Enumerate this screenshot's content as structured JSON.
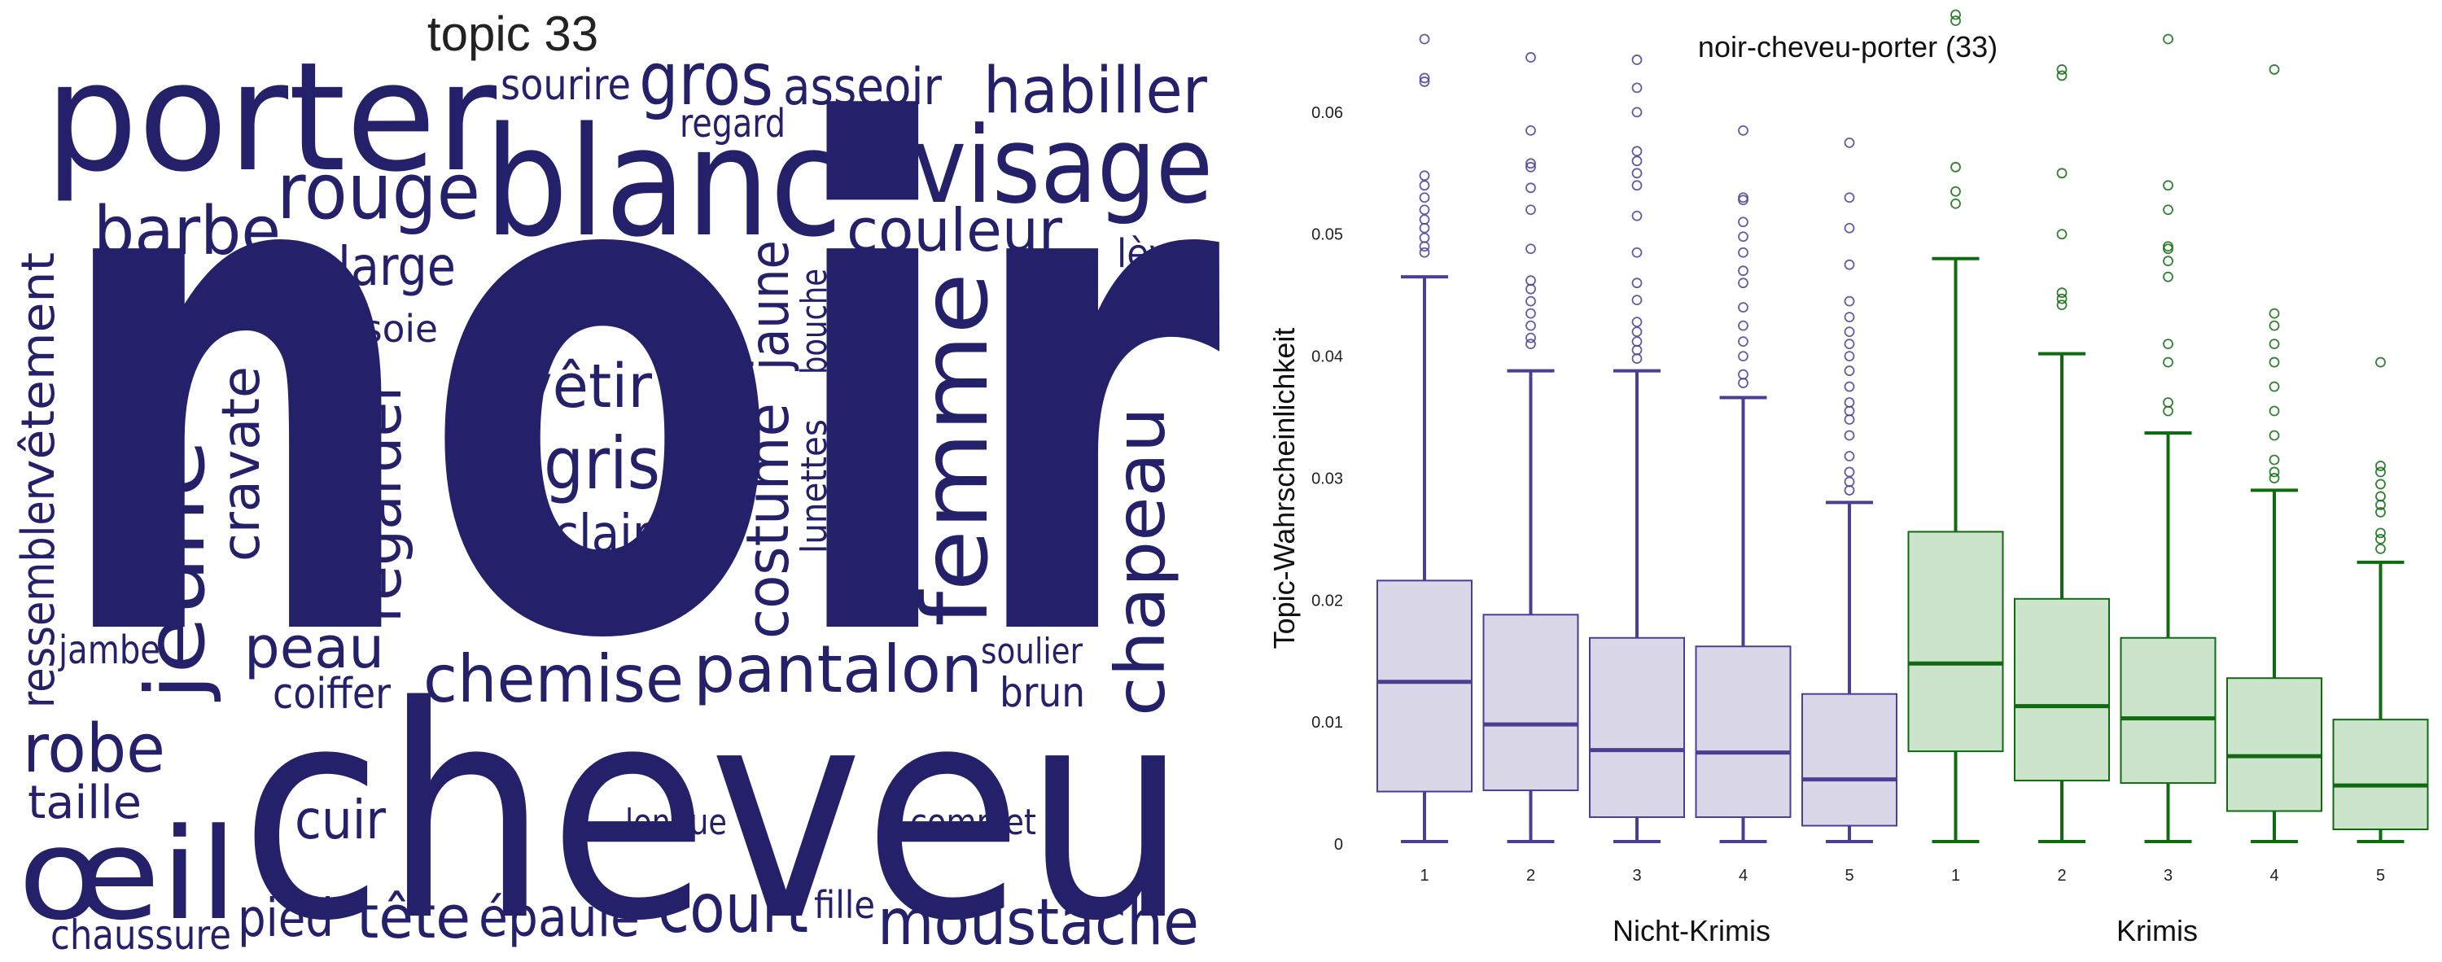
{
  "wordcloud": {
    "title": "topic 33",
    "color": "#24216a",
    "words": [
      "noir",
      "cheveu",
      "porter",
      "blanc",
      "visage",
      "rouge",
      "barbe",
      "gros",
      "sourire",
      "asseoir",
      "regard",
      "habiller",
      "couleur",
      "large",
      "lèvre",
      "soie",
      "vêtir",
      "gris",
      "clair",
      "femme",
      "jeune",
      "cravate",
      "regarder",
      "costume",
      "jaune",
      "bouche",
      "lunettes",
      "chapeau",
      "vêtement",
      "ressembler",
      "jambe",
      "peau",
      "coiffer",
      "chemise",
      "pantalon",
      "soulier",
      "brun",
      "robe",
      "taille",
      "œil",
      "cuir",
      "longue",
      "complet",
      "chaussure",
      "pied",
      "tête",
      "épaule",
      "court",
      "fille",
      "moustache"
    ]
  },
  "chart_data": {
    "type": "box",
    "title": "noir-cheveu-porter (33)",
    "ylabel": "Topic-Wahrscheinlichkeit",
    "ylim": [
      0,
      0.068
    ],
    "yticks": [
      0,
      0.01,
      0.02,
      0.03,
      0.04,
      0.05,
      0.06
    ],
    "ytick_labels": [
      "0",
      "0.01",
      "0.02",
      "0.03",
      "0.04",
      "0.05",
      "0.06"
    ],
    "grid": false,
    "groups": [
      {
        "name": "Nicht-Krimis",
        "color": "#4b3f94",
        "fill": "#dad7e8",
        "boxes": [
          {
            "label": "1",
            "whisker_low": 0.0002,
            "q1": 0.0043,
            "median": 0.0133,
            "q3": 0.0216,
            "whisker_high": 0.0465,
            "outliers": [
              0.0485,
              0.049,
              0.0497,
              0.0505,
              0.0512,
              0.052,
              0.053,
              0.054,
              0.0548,
              0.0625,
              0.0628,
              0.066
            ]
          },
          {
            "label": "2",
            "whisker_low": 0.0002,
            "q1": 0.0044,
            "median": 0.0098,
            "q3": 0.0188,
            "whisker_high": 0.0388,
            "outliers": [
              0.041,
              0.0415,
              0.0425,
              0.0435,
              0.0445,
              0.0455,
              0.0462,
              0.0488,
              0.052,
              0.0538,
              0.0555,
              0.0558,
              0.0585,
              0.0645
            ]
          },
          {
            "label": "3",
            "whisker_low": 0.0002,
            "q1": 0.0022,
            "median": 0.0077,
            "q3": 0.0169,
            "whisker_high": 0.0388,
            "outliers": [
              0.0398,
              0.0405,
              0.0412,
              0.042,
              0.0428,
              0.0446,
              0.046,
              0.0485,
              0.0515,
              0.054,
              0.055,
              0.056,
              0.0568,
              0.06,
              0.062,
              0.0643
            ]
          },
          {
            "label": "4",
            "whisker_low": 0.0002,
            "q1": 0.0022,
            "median": 0.0075,
            "q3": 0.0162,
            "whisker_high": 0.0366,
            "outliers": [
              0.0378,
              0.0385,
              0.04,
              0.0412,
              0.0425,
              0.044,
              0.046,
              0.047,
              0.0485,
              0.0498,
              0.051,
              0.0528,
              0.053,
              0.0585
            ]
          },
          {
            "label": "5",
            "whisker_low": 0.0002,
            "q1": 0.0015,
            "median": 0.0053,
            "q3": 0.0123,
            "whisker_high": 0.028,
            "outliers": [
              0.029,
              0.0297,
              0.0305,
              0.0318,
              0.0335,
              0.0348,
              0.0355,
              0.0362,
              0.0375,
              0.0388,
              0.04,
              0.041,
              0.042,
              0.0432,
              0.0445,
              0.0475,
              0.0505,
              0.053,
              0.0575
            ]
          }
        ]
      },
      {
        "name": "Krimis",
        "color": "#0f6b0f",
        "fill": "#cce3cc",
        "boxes": [
          {
            "label": "1",
            "whisker_low": 0.0002,
            "q1": 0.0076,
            "median": 0.0148,
            "q3": 0.0256,
            "whisker_high": 0.048,
            "outliers": [
              0.0525,
              0.0535,
              0.0555,
              0.0675,
              0.068
            ]
          },
          {
            "label": "2",
            "whisker_low": 0.0002,
            "q1": 0.0052,
            "median": 0.0113,
            "q3": 0.0201,
            "whisker_high": 0.0402,
            "outliers": [
              0.0442,
              0.0447,
              0.0452,
              0.05,
              0.055,
              0.063,
              0.0635
            ]
          },
          {
            "label": "3",
            "whisker_low": 0.0002,
            "q1": 0.005,
            "median": 0.0103,
            "q3": 0.0169,
            "whisker_high": 0.0337,
            "outliers": [
              0.0355,
              0.0362,
              0.0395,
              0.041,
              0.0465,
              0.0478,
              0.0488,
              0.049,
              0.052,
              0.054,
              0.066
            ]
          },
          {
            "label": "4",
            "whisker_low": 0.0002,
            "q1": 0.0027,
            "median": 0.0072,
            "q3": 0.0136,
            "whisker_high": 0.029,
            "outliers": [
              0.03,
              0.0305,
              0.0315,
              0.0335,
              0.0355,
              0.0375,
              0.0395,
              0.041,
              0.0425,
              0.0435,
              0.0635
            ]
          },
          {
            "label": "5",
            "whisker_low": 0.0002,
            "q1": 0.0012,
            "median": 0.0048,
            "q3": 0.0102,
            "whisker_high": 0.0231,
            "outliers": [
              0.0242,
              0.025,
              0.0255,
              0.0272,
              0.0278,
              0.0285,
              0.0295,
              0.0305,
              0.031,
              0.0395
            ]
          }
        ]
      }
    ]
  }
}
